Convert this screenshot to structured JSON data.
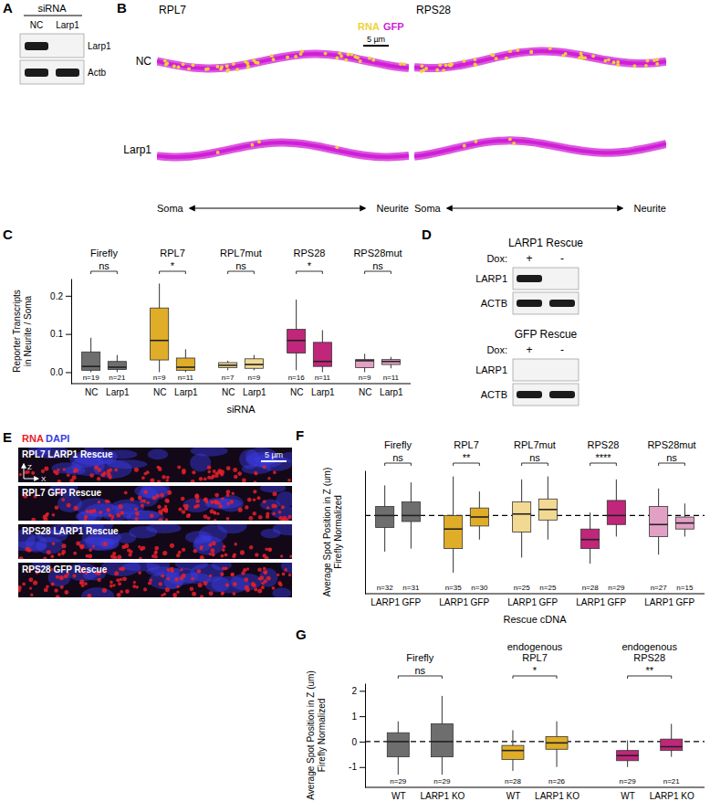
{
  "panels": {
    "A": {
      "label": "A",
      "header": "siRNA",
      "lanes": [
        "NC",
        "Larp1"
      ],
      "rows": [
        "Larp1",
        "Actb"
      ],
      "bands": [
        [
          true,
          false
        ],
        [
          true,
          true
        ]
      ]
    },
    "B": {
      "label": "B",
      "columns": [
        "RPL7",
        "RPS28"
      ],
      "rows": [
        "NC",
        "Larp1"
      ],
      "channels": [
        {
          "name": "RNA",
          "color": "#f0d23a"
        },
        {
          "name": "GFP",
          "color": "#d01fd6"
        }
      ],
      "scale_bar": "5 µm",
      "axis": [
        "Soma",
        "Neurite"
      ]
    },
    "D": {
      "label": "D",
      "blots": [
        {
          "title": "LARP1 Rescue",
          "treatment": "Dox:",
          "lanes": [
            "+",
            "-"
          ],
          "rows": [
            "LARP1",
            "ACTB"
          ],
          "bands": [
            [
              true,
              false
            ],
            [
              true,
              true
            ]
          ]
        },
        {
          "title": "GFP Rescue",
          "treatment": "Dox:",
          "lanes": [
            "+",
            "-"
          ],
          "rows": [
            "LARP1",
            "ACTB"
          ],
          "bands": [
            [
              false,
              false
            ],
            [
              true,
              true
            ]
          ]
        }
      ]
    },
    "E": {
      "label": "E",
      "channels": [
        {
          "name": "RNA",
          "color": "#e8202a"
        },
        {
          "name": "DAPI",
          "color": "#3b3be6"
        }
      ],
      "axes": [
        "Z",
        "X"
      ],
      "scale_bar": "5 µm",
      "images": [
        "RPL7 LARP1 Rescue",
        "RPL7 GFP Rescue",
        "RPS28 LARP1 Rescue",
        "RPS28 GFP Rescue"
      ]
    }
  },
  "chart_data": [
    {
      "type": "box",
      "panel_label": "C",
      "ylabel": [
        "Reporter Transcripts",
        "in Neurite / Soma"
      ],
      "xlabel": "siRNA",
      "ylim": [
        -0.03,
        0.245
      ],
      "yticks": [
        {
          "value": 0,
          "label": "0.0"
        },
        0.1,
        0.2
      ],
      "groups": [
        {
          "title": [
            "Firefly"
          ],
          "significance": "ns",
          "boxes": [
            {
              "category": "NC",
              "n": "n=19",
              "color": "#6e6e6e",
              "stats": {
                "low": 0,
                "q1": 0.005,
                "median": 0.015,
                "q3": 0.053,
                "high": 0.09
              }
            },
            {
              "category": "Larp1",
              "n": "n=21",
              "color": "#6e6e6e",
              "stats": {
                "low": 0,
                "q1": 0.007,
                "median": 0.013,
                "q3": 0.028,
                "high": 0.045
              }
            }
          ]
        },
        {
          "title": [
            "RPL7"
          ],
          "significance": "*",
          "boxes": [
            {
              "category": "NC",
              "n": "n=9",
              "color": "#e0ad28",
              "stats": {
                "low": 0,
                "q1": 0.032,
                "median": 0.083,
                "q3": 0.168,
                "high": 0.232
              }
            },
            {
              "category": "Larp1",
              "n": "n=11",
              "color": "#e0ad28",
              "stats": {
                "low": 0,
                "q1": 0.005,
                "median": 0.013,
                "q3": 0.037,
                "high": 0.06
              }
            }
          ]
        },
        {
          "title": [
            "RPL7mut"
          ],
          "significance": "ns",
          "boxes": [
            {
              "category": "NC",
              "n": "n=7",
              "color": "#f2d992",
              "stats": {
                "low": 0.005,
                "q1": 0.012,
                "median": 0.018,
                "q3": 0.025,
                "high": 0.03
              }
            },
            {
              "category": "Larp1",
              "n": "n=9",
              "color": "#f2d992",
              "stats": {
                "low": 0.005,
                "q1": 0.01,
                "median": 0.02,
                "q3": 0.035,
                "high": 0.045
              }
            }
          ]
        },
        {
          "title": [
            "RPS28"
          ],
          "significance": "*",
          "boxes": [
            {
              "category": "NC",
              "n": "n=16",
              "color": "#c0267a",
              "stats": {
                "low": 0.005,
                "q1": 0.05,
                "median": 0.083,
                "q3": 0.112,
                "high": 0.19
              }
            },
            {
              "category": "Larp1",
              "n": "n=11",
              "color": "#c0267a",
              "stats": {
                "low": 0,
                "q1": 0.015,
                "median": 0.028,
                "q3": 0.078,
                "high": 0.11
              }
            }
          ]
        },
        {
          "title": [
            "RPS28mut"
          ],
          "significance": "ns",
          "boxes": [
            {
              "category": "NC",
              "n": "n=9",
              "color": "#e2a1c4",
              "stats": {
                "low": 0,
                "q1": 0.012,
                "median": 0.03,
                "q3": 0.033,
                "high": 0.048
              }
            },
            {
              "category": "Larp1",
              "n": "n=11",
              "color": "#e2a1c4",
              "stats": {
                "low": 0.01,
                "q1": 0.02,
                "median": 0.028,
                "q3": 0.033,
                "high": 0.04
              }
            }
          ]
        }
      ]
    },
    {
      "type": "box",
      "panel_label": "F",
      "ylabel": [
        "Average Spot Position in Z (um)",
        "Firefly Normalized"
      ],
      "xlabel": "Rescue cDNA",
      "ylim": [
        -2.6,
        1.5
      ],
      "tick_labels": "x",
      "reference_line": 0,
      "groups": [
        {
          "title": [
            "Firefly"
          ],
          "significance": "ns",
          "boxes": [
            {
              "category": "LARP1",
              "n": "n=32",
              "color": "#6e6e6e",
              "stats": {
                "low": -1.2,
                "q1": -0.4,
                "median": 0,
                "q3": 0.3,
                "high": 1.0
              }
            },
            {
              "category": "GFP",
              "n": "n=31",
              "color": "#6e6e6e",
              "stats": {
                "low": -1.1,
                "q1": -0.2,
                "median": 0,
                "q3": 0.45,
                "high": 1.1
              }
            }
          ]
        },
        {
          "title": [
            "RPL7"
          ],
          "significance": "**",
          "boxes": [
            {
              "category": "LARP1",
              "n": "n=35",
              "color": "#e0ad28",
              "stats": {
                "low": -1.9,
                "q1": -1.1,
                "median": -0.45,
                "q3": 0,
                "high": 1.3
              }
            },
            {
              "category": "GFP",
              "n": "n=30",
              "color": "#e0ad28",
              "stats": {
                "low": -0.8,
                "q1": -0.35,
                "median": -0.05,
                "q3": 0.25,
                "high": 0.8
              }
            }
          ]
        },
        {
          "title": [
            "RPL7mut"
          ],
          "significance": "ns",
          "boxes": [
            {
              "category": "LARP1",
              "n": "n=25",
              "color": "#f2d992",
              "stats": {
                "low": -1.4,
                "q1": -0.55,
                "median": 0.05,
                "q3": 0.45,
                "high": 1.2
              }
            },
            {
              "category": "GFP",
              "n": "n=25",
              "color": "#f2d992",
              "stats": {
                "low": -0.8,
                "q1": -0.15,
                "median": 0.2,
                "q3": 0.55,
                "high": 1.3
              }
            }
          ]
        },
        {
          "title": [
            "RPS28"
          ],
          "significance": "****",
          "boxes": [
            {
              "category": "LARP1",
              "n": "n=28",
              "color": "#c0267a",
              "stats": {
                "low": -1.6,
                "q1": -1.1,
                "median": -0.8,
                "q3": -0.45,
                "high": 0.1
              }
            },
            {
              "category": "GFP",
              "n": "n=29",
              "color": "#c0267a",
              "stats": {
                "low": -0.7,
                "q1": -0.3,
                "median": 0,
                "q3": 0.5,
                "high": 1.2
              }
            }
          ]
        },
        {
          "title": [
            "RPS28mut"
          ],
          "significance": "ns",
          "boxes": [
            {
              "category": "LARP1",
              "n": "n=27",
              "color": "#e2a1c4",
              "stats": {
                "low": -1.3,
                "q1": -0.7,
                "median": -0.3,
                "q3": 0.3,
                "high": 0.9
              }
            },
            {
              "category": "GFP",
              "n": "n=15",
              "color": "#e2a1c4",
              "stats": {
                "low": -0.7,
                "q1": -0.45,
                "median": -0.25,
                "q3": -0.05,
                "high": 0.4
              }
            }
          ]
        }
      ]
    },
    {
      "type": "box",
      "panel_label": "G",
      "ylabel": [
        "Average Spot Position in Z (um)",
        "Firefly Normalized"
      ],
      "ylim": [
        -1.8,
        2.3
      ],
      "yticks": [
        -1,
        0,
        1,
        2
      ],
      "reference_line": 0,
      "groups": [
        {
          "title": [
            "Firefly"
          ],
          "significance": "ns",
          "boxes": [
            {
              "category": "WT",
              "n": "n=29",
              "color": "#6e6e6e",
              "stats": {
                "low": -1.3,
                "q1": -0.6,
                "median": 0,
                "q3": 0.35,
                "high": 0.8
              }
            },
            {
              "category": "LARP1 KO",
              "n": "n=29",
              "color": "#6e6e6e",
              "stats": {
                "low": -1.3,
                "q1": -0.6,
                "median": 0,
                "q3": 0.7,
                "high": 1.8
              }
            }
          ]
        },
        {
          "title": [
            "endogenous",
            "RPL7"
          ],
          "significance": "*",
          "boxes": [
            {
              "category": "WT",
              "n": "n=28",
              "color": "#e0ad28",
              "stats": {
                "low": -1.15,
                "q1": -0.7,
                "median": -0.35,
                "q3": -0.15,
                "high": 0.45
              }
            },
            {
              "category": "LARP1 KO",
              "n": "n=26",
              "color": "#e0ad28",
              "stats": {
                "low": -1.0,
                "q1": -0.3,
                "median": -0.05,
                "q3": 0.2,
                "high": 0.8
              }
            }
          ]
        },
        {
          "title": [
            "endogenous",
            "RPS28"
          ],
          "significance": "**",
          "boxes": [
            {
              "category": "WT",
              "n": "n=29",
              "color": "#c0267a",
              "stats": {
                "low": -1.0,
                "q1": -0.75,
                "median": -0.55,
                "q3": -0.35,
                "high": 0.05
              }
            },
            {
              "category": "LARP1 KO",
              "n": "n=21",
              "color": "#c0267a",
              "stats": {
                "low": -0.6,
                "q1": -0.35,
                "median": -0.2,
                "q3": 0.1,
                "high": 0.7
              }
            }
          ]
        }
      ]
    }
  ]
}
